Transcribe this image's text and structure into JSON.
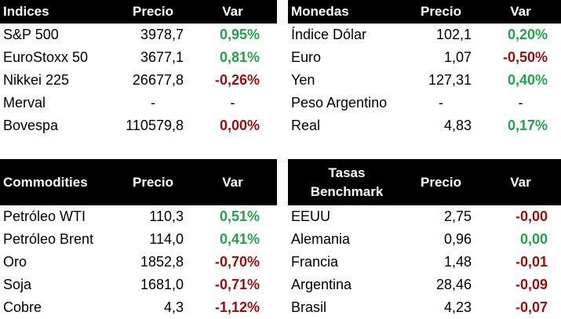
{
  "panels": {
    "indices": {
      "headers": [
        "Indices",
        "Precio",
        "Var"
      ],
      "rows": [
        {
          "name": "S&P 500",
          "price": "3978,7",
          "var": "0,95%",
          "dir": "pos"
        },
        {
          "name": "EuroStoxx 50",
          "price": "3677,1",
          "var": "0,81%",
          "dir": "pos"
        },
        {
          "name": "Nikkei 225",
          "price": "26677,8",
          "var": "-0,26%",
          "dir": "neg"
        },
        {
          "name": "Merval",
          "price": "-",
          "var": "-",
          "dir": "none"
        },
        {
          "name": "Bovespa",
          "price": "110579,8",
          "var": "0,00%",
          "dir": "neg"
        }
      ]
    },
    "monedas": {
      "headers": [
        "Monedas",
        "Precio",
        "Var"
      ],
      "rows": [
        {
          "name": "Índice Dólar",
          "price": "102,1",
          "var": "0,20%",
          "dir": "pos"
        },
        {
          "name": "Euro",
          "price": "1,07",
          "var": "-0,50%",
          "dir": "neg"
        },
        {
          "name": "Yen",
          "price": "127,31",
          "var": "0,40%",
          "dir": "pos"
        },
        {
          "name": "Peso Argentino",
          "price": "-",
          "var": "-",
          "dir": "none"
        },
        {
          "name": "Real",
          "price": "4,83",
          "var": "0,17%",
          "dir": "pos"
        }
      ]
    },
    "commodities": {
      "headers": [
        "Commodities",
        "Precio",
        "Var"
      ],
      "rows": [
        {
          "name": "Petróleo WTI",
          "price": "110,3",
          "var": "0,51%",
          "dir": "pos"
        },
        {
          "name": "Petróleo Brent",
          "price": "114,0",
          "var": "0,41%",
          "dir": "pos"
        },
        {
          "name": "Oro",
          "price": "1852,8",
          "var": "-0,70%",
          "dir": "neg"
        },
        {
          "name": "Soja",
          "price": "1681,0",
          "var": "-0,71%",
          "dir": "neg"
        },
        {
          "name": "Cobre",
          "price": "4,3",
          "var": "-1,12%",
          "dir": "neg"
        }
      ]
    },
    "tasas": {
      "headers": [
        "Tasas Benchmark",
        "Precio",
        "Var"
      ],
      "header_line1": "Tasas",
      "header_line2": "Benchmark",
      "rows": [
        {
          "name": "EEUU",
          "price": "2,75",
          "var": "-0,00",
          "dir": "neg"
        },
        {
          "name": "Alemania",
          "price": "0,96",
          "var": "0,00",
          "dir": "pos"
        },
        {
          "name": "Francia",
          "price": "1,48",
          "var": "-0,01",
          "dir": "neg"
        },
        {
          "name": "Argentina",
          "price": "28,46",
          "var": "-0,09",
          "dir": "neg"
        },
        {
          "name": "Brasil",
          "price": "4,23",
          "var": "-0,07",
          "dir": "neg"
        }
      ]
    }
  },
  "colors": {
    "positive": "#22a34a",
    "negative": "#9b0e0e",
    "header_bg": "#000000",
    "header_text": "#ffffff"
  }
}
